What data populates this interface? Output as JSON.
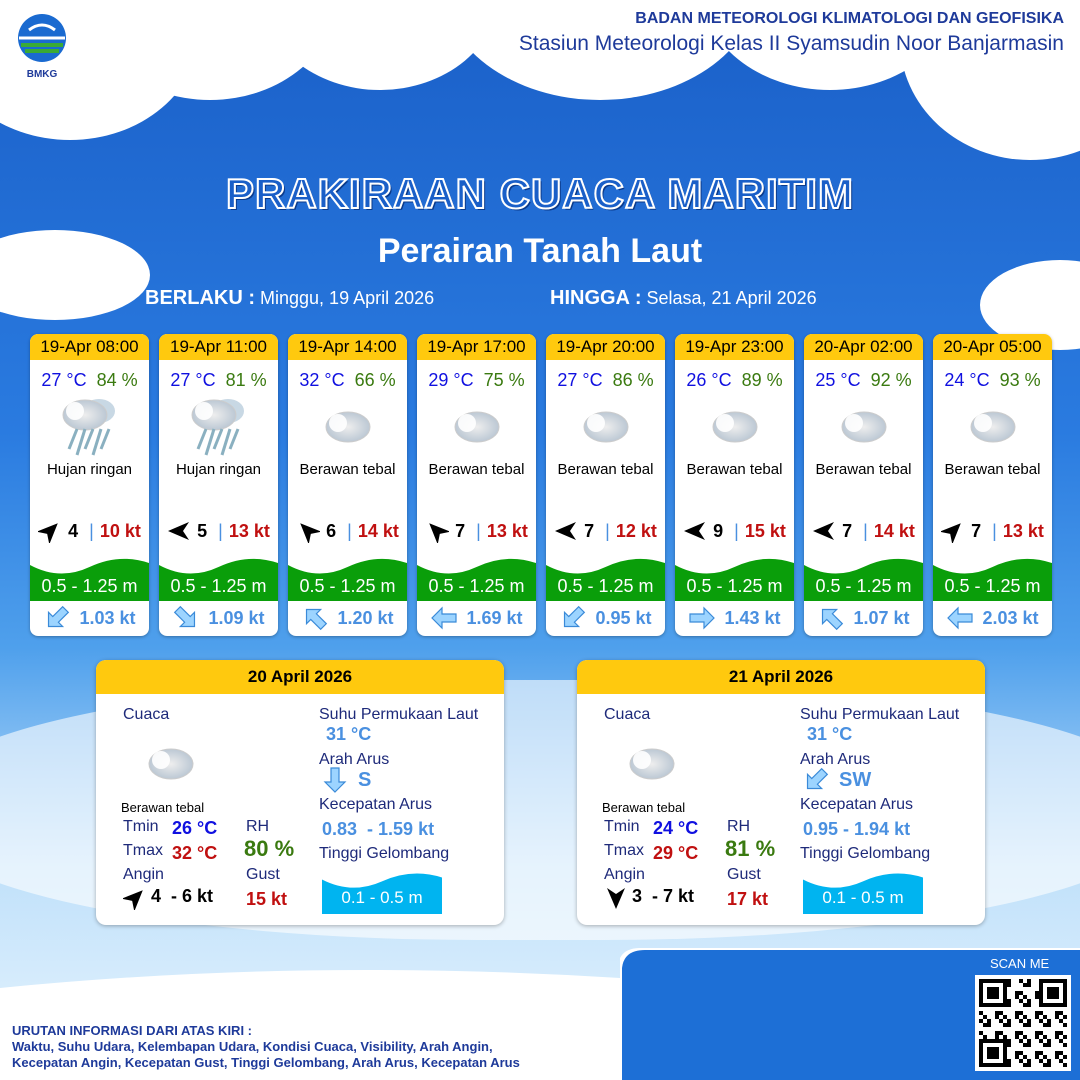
{
  "header": {
    "org": "BADAN METEOROLOGI KLIMATOLOGI DAN GEOFISIKA",
    "station": "Stasiun Meteorologi Kelas II Syamsudin Noor Banjarmasin",
    "logo_text": "BMKG"
  },
  "title": "PRAKIRAAN CUACA MARITIM",
  "subtitle": "Perairan Tanah Laut",
  "validity": {
    "from_label": "BERLAKU :",
    "from": "Minggu, 19 April 2026",
    "to_label": "HINGGA :",
    "to": "Selasa, 21 April 2026"
  },
  "colors": {
    "temp": "#1010e0",
    "rh": "#3a7a10",
    "gust": "#c01010",
    "wave_moderate": "#0a9e0a",
    "wave_slight": "#00b4f0",
    "header_yellow": "#ffc90e"
  },
  "forecasts": [
    {
      "time": "19-Apr 08:00",
      "temp": "27 °C",
      "rh": "84 %",
      "icon": "light-rain",
      "weather": "Hujan ringan",
      "wind_dir": "NE",
      "wind": "4",
      "gust": "10 kt",
      "wave": "0.5 - 1.25 m",
      "current_dir": "SW",
      "current": "1.03 kt"
    },
    {
      "time": "19-Apr 11:00",
      "temp": "27 °C",
      "rh": "81 %",
      "icon": "light-rain",
      "weather": "Hujan ringan",
      "wind_dir": "W",
      "wind": "5",
      "gust": "13 kt",
      "wave": "0.5 - 1.25 m",
      "current_dir": "SE",
      "current": "1.09 kt"
    },
    {
      "time": "19-Apr 14:00",
      "temp": "32 °C",
      "rh": "66 %",
      "icon": "overcast",
      "weather": "Berawan tebal",
      "wind_dir": "NW",
      "wind": "6",
      "gust": "14 kt",
      "wave": "0.5 - 1.25 m",
      "current_dir": "NW",
      "current": "1.20 kt"
    },
    {
      "time": "19-Apr 17:00",
      "temp": "29 °C",
      "rh": "75 %",
      "icon": "overcast",
      "weather": "Berawan tebal",
      "wind_dir": "NW",
      "wind": "7",
      "gust": "13 kt",
      "wave": "0.5 - 1.25 m",
      "current_dir": "W",
      "current": "1.69 kt"
    },
    {
      "time": "19-Apr 20:00",
      "temp": "27 °C",
      "rh": "86 %",
      "icon": "overcast",
      "weather": "Berawan tebal",
      "wind_dir": "W",
      "wind": "7",
      "gust": "12 kt",
      "wave": "0.5 - 1.25 m",
      "current_dir": "SW",
      "current": "0.95 kt"
    },
    {
      "time": "19-Apr 23:00",
      "temp": "26 °C",
      "rh": "89 %",
      "icon": "overcast",
      "weather": "Berawan tebal",
      "wind_dir": "W",
      "wind": "9",
      "gust": "15 kt",
      "wave": "0.5 - 1.25 m",
      "current_dir": "E",
      "current": "1.43 kt"
    },
    {
      "time": "20-Apr 02:00",
      "temp": "25 °C",
      "rh": "92 %",
      "icon": "overcast",
      "weather": "Berawan tebal",
      "wind_dir": "W",
      "wind": "7",
      "gust": "14 kt",
      "wave": "0.5 - 1.25 m",
      "current_dir": "NW",
      "current": "1.07 kt"
    },
    {
      "time": "20-Apr 05:00",
      "temp": "24 °C",
      "rh": "93 %",
      "icon": "overcast",
      "weather": "Berawan tebal",
      "wind_dir": "NE",
      "wind": "7",
      "gust": "13 kt",
      "wave": "0.5 - 1.25 m",
      "current_dir": "W",
      "current": "2.03 kt"
    }
  ],
  "labels": {
    "weather": "Cuaca",
    "tmin": "Tmin",
    "tmax": "Tmax",
    "wind": "Angin",
    "rh": "RH",
    "gust": "Gust",
    "sst": "Suhu Permukaan Laut",
    "current_dir": "Arah Arus",
    "current_speed": "Kecepatan Arus",
    "wave": "Tinggi Gelombang"
  },
  "daily": [
    {
      "date": "20 April 2026",
      "icon": "overcast",
      "weather": "Berawan tebal",
      "tmin": "26 °C",
      "tmax": "32 °C",
      "rh": "80 %",
      "wind_dir": "NE",
      "wind": "4  - 6 kt",
      "gust": "15 kt",
      "sst": "31 °C",
      "current_dir_icon": "S",
      "current_dir": "S",
      "current_speed": "0.83  - 1.59 kt",
      "wave": "0.1 - 0.5 m"
    },
    {
      "date": "21 April 2026",
      "icon": "overcast",
      "weather": "Berawan tebal",
      "tmin": "24 °C",
      "tmax": "29 °C",
      "rh": "81 %",
      "wind_dir": "S",
      "wind": "3  - 7 kt",
      "gust": "17 kt",
      "sst": "31 °C",
      "current_dir_icon": "SW",
      "current_dir": "SW",
      "current_speed": "0.95 - 1.94 kt",
      "wave": "0.1 - 0.5 m"
    }
  ],
  "footer": {
    "legend_title": "URUTAN INFORMASI DARI ATAS KIRI :",
    "legend_line1": "Waktu, Suhu Udara, Kelembapan Udara, Kondisi Cuaca, Visibility, Arah Angin,",
    "legend_line2": "Kecepatan Angin, Kecepatan Gust, Tinggi Gelombang, Arah Arus, Kecepatan Arus",
    "scan": "SCAN ME"
  }
}
